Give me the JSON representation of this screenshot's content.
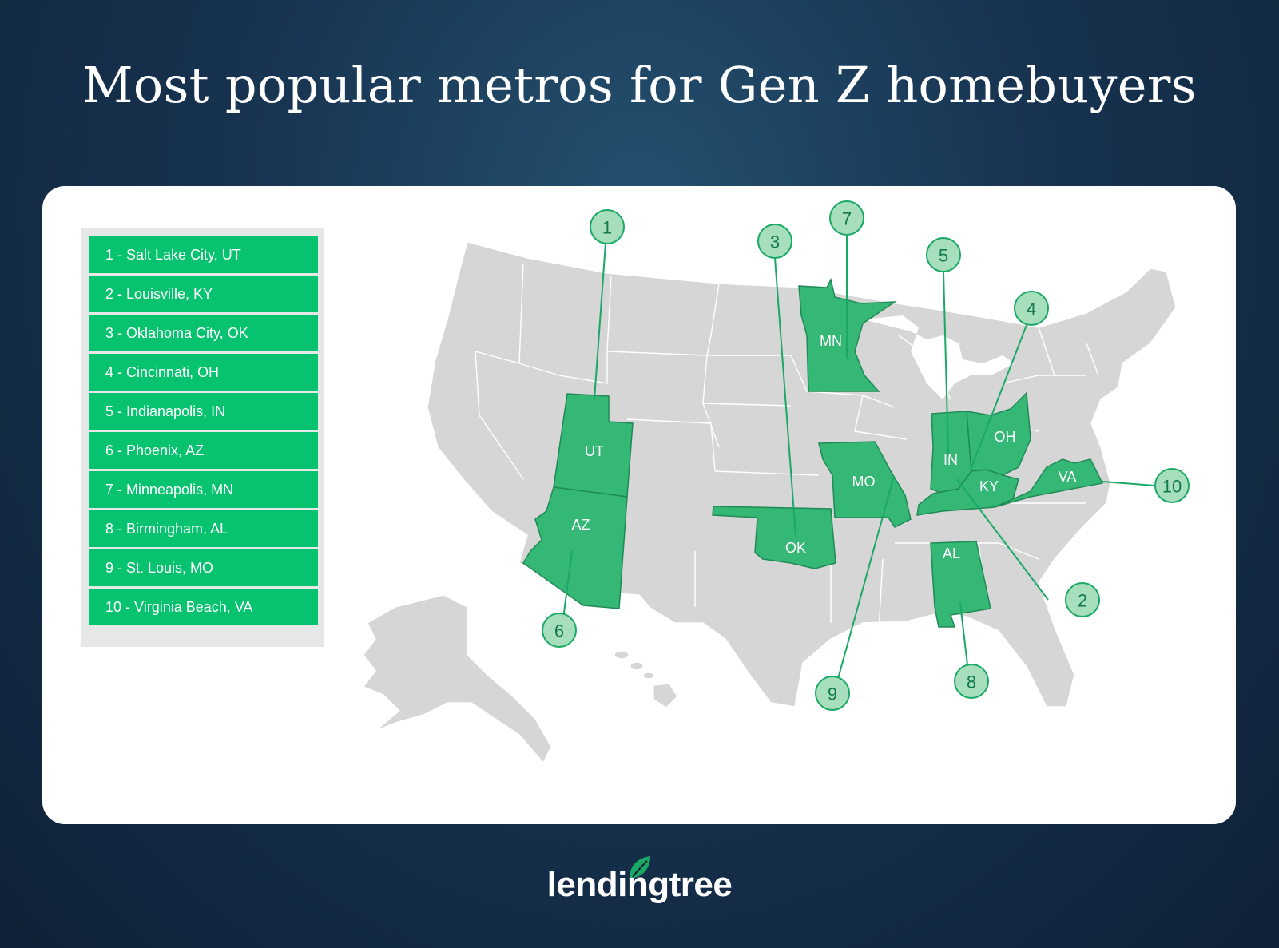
{
  "title": "Most popular metros for Gen Z homebuyers",
  "legend": [
    "1 - Salt Lake City, UT",
    "2 - Louisville, KY",
    "3 - Oklahoma City, OK",
    "4 - Cincinnati, OH",
    "5 - Indianapolis, IN",
    "6 - Phoenix, AZ",
    "7 - Minneapolis, MN",
    "8 - Birmingham, AL",
    "9 - St. Louis, MO",
    "10 - Virginia Beach, VA"
  ],
  "states": {
    "ut": "UT",
    "az": "AZ",
    "mn": "MN",
    "ok": "OK",
    "mo": "MO",
    "in": "IN",
    "oh": "OH",
    "ky": "KY",
    "va": "VA",
    "al": "AL"
  },
  "markers": {
    "m1": "1",
    "m2": "2",
    "m3": "3",
    "m4": "4",
    "m5": "5",
    "m6": "6",
    "m7": "7",
    "m8": "8",
    "m9": "9",
    "m10": "10"
  },
  "colors": {
    "highlight": "#35b776",
    "legend_item": "#07c370",
    "base_state": "#d6d6d7",
    "marker_fill": "#a7dfbd"
  },
  "logo": {
    "text": "lendingtree",
    "icon": "leaf-icon"
  }
}
